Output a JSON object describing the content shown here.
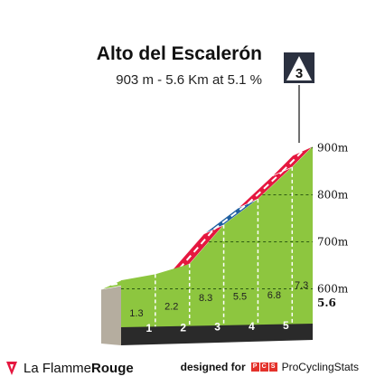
{
  "header": {
    "title": "Alto del Escalerón",
    "subtitle": "903 m - 5.6 Km at 5.1 %",
    "category_badge": "3"
  },
  "chart_data": {
    "type": "area",
    "title": "Alto del Escalerón",
    "subtitle": "903 m - 5.6 Km at 5.1 %",
    "x": [
      0,
      1,
      2,
      3,
      4,
      5,
      5.6
    ],
    "elevation_m": [
      618,
      631,
      653,
      736,
      791,
      859,
      903
    ],
    "segment_gradients": [
      1.3,
      2.2,
      8.3,
      5.5,
      6.8,
      7.3
    ],
    "segment_colors": [
      "#8dc63f",
      "#8dc63f",
      "#e5173f",
      "#1f5fa0",
      "#e5173f",
      "#e5173f"
    ],
    "segment_color_meaning": [
      "green",
      "green",
      "red",
      "blue",
      "red",
      "red"
    ],
    "km_markers": [
      "1",
      "2",
      "3",
      "4",
      "5"
    ],
    "end_distance_label": "5.6",
    "altitude_ticks": [
      "600m",
      "700m",
      "800m",
      "900m"
    ],
    "altitude_tick_values": [
      600,
      700,
      800,
      900
    ],
    "ylim": [
      540,
      940
    ],
    "xlim": [
      0,
      5.6
    ]
  },
  "footer": {
    "brand_prefix": "La Flamme",
    "brand_suffix": "Rouge",
    "designed_label": "designed for",
    "pcs_letters": [
      "P",
      "C",
      "S"
    ],
    "pcs_name": "ProCyclingStats"
  },
  "colors": {
    "green": "#8dc63f",
    "red": "#e5173f",
    "blue": "#1f5fa0",
    "base": "#2a2a2a",
    "side": "#b5ad9f"
  }
}
